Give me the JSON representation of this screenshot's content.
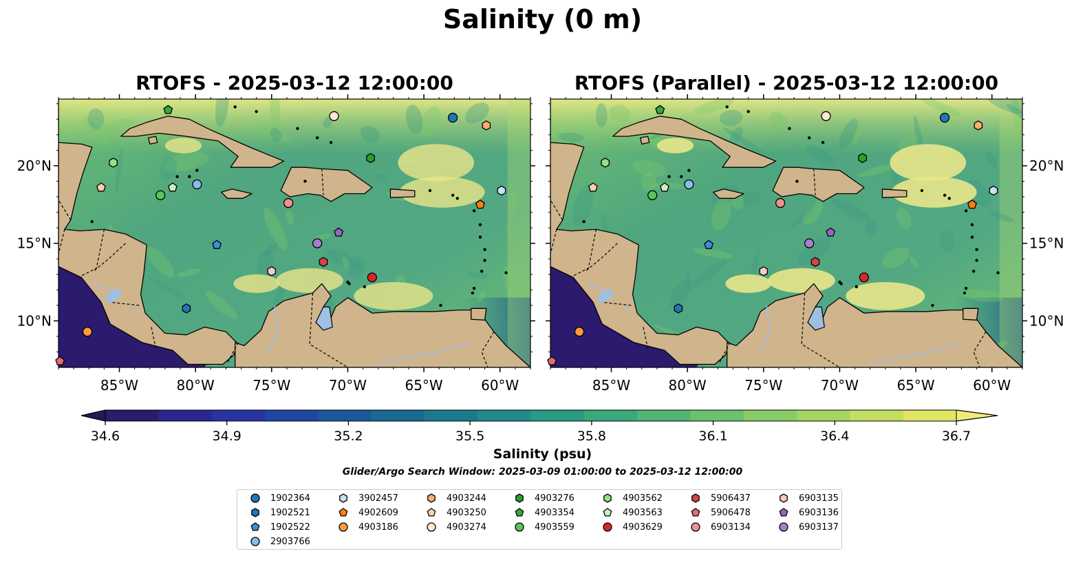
{
  "title": "Salinity (0 m)",
  "panels": [
    {
      "id": "rtofs",
      "title": "RTOFS - 2025-03-12 12:00:00"
    },
    {
      "id": "rtofs-parallel",
      "title": "RTOFS (Parallel) - 2025-03-12 12:00:00"
    }
  ],
  "chart_data": {
    "type": "heatmap",
    "variable": "Salinity",
    "depth_m": 0,
    "x_ticks": [
      "85°W",
      "80°W",
      "75°W",
      "70°W",
      "65°W",
      "60°W"
    ],
    "x_tick_values": [
      -85,
      -80,
      -75,
      -70,
      -65,
      -60
    ],
    "y_ticks": [
      "10°N",
      "15°N",
      "20°N"
    ],
    "y_tick_values": [
      10,
      15,
      20
    ],
    "xlim": [
      -89,
      -58
    ],
    "ylim": [
      7,
      24.3
    ],
    "colorbar": {
      "label": "Salinity (psu)",
      "ticks": [
        "34.6",
        "34.9",
        "35.2",
        "35.5",
        "35.8",
        "36.1",
        "36.4",
        "36.7"
      ],
      "range": [
        34.6,
        36.7
      ],
      "colormap": "haline",
      "extend": "both"
    },
    "search_window": "Glider/Argo Search Window: 2025-03-09 01:00:00 to 2025-03-12 12:00:00",
    "floats": [
      {
        "id": "1902364",
        "marker": "circle",
        "color": "#1f77b4",
        "lon": -63.1,
        "lat": 23.1
      },
      {
        "id": "1902521",
        "marker": "hexagon",
        "color": "#1f77b4",
        "lon": -80.6,
        "lat": 10.8
      },
      {
        "id": "1902522",
        "marker": "pentagon",
        "color": "#3b8fd6",
        "lon": -78.6,
        "lat": 14.9
      },
      {
        "id": "2903766",
        "marker": "circle",
        "color": "#86bdea",
        "lon": -79.9,
        "lat": 18.8
      },
      {
        "id": "3902457",
        "marker": "hexagon",
        "color": "#c5e3f7",
        "lon": -59.9,
        "lat": 18.4
      },
      {
        "id": "4902609",
        "marker": "pentagon",
        "color": "#ff7f0e",
        "lon": -61.3,
        "lat": 17.5
      },
      {
        "id": "4903186",
        "marker": "circle",
        "color": "#ff9a3c",
        "lon": -87.1,
        "lat": 9.3
      },
      {
        "id": "4903244",
        "marker": "hexagon",
        "color": "#ffad6b",
        "lon": -60.9,
        "lat": 22.6
      },
      {
        "id": "4903250",
        "marker": "pentagon",
        "color": "#ffd0a6",
        "lon": -86.2,
        "lat": 18.6
      },
      {
        "id": "4903274",
        "marker": "circle",
        "color": "#ffe9d4",
        "lon": -70.9,
        "lat": 23.2
      },
      {
        "id": "4903276",
        "marker": "hexagon",
        "color": "#2ca02c",
        "lon": -68.5,
        "lat": 20.5
      },
      {
        "id": "4903354",
        "marker": "pentagon",
        "color": "#38a838",
        "lon": -81.8,
        "lat": 23.6
      },
      {
        "id": "4903559",
        "marker": "circle",
        "color": "#5bc35b",
        "lon": -82.3,
        "lat": 18.1
      },
      {
        "id": "4903562",
        "marker": "hexagon",
        "color": "#98df8a",
        "lon": -85.4,
        "lat": 20.2
      },
      {
        "id": "4903563",
        "marker": "pentagon",
        "color": "#c9efc0",
        "lon": -81.5,
        "lat": 18.6
      },
      {
        "id": "4903629",
        "marker": "circle",
        "color": "#d62728",
        "lon": -68.4,
        "lat": 12.8
      },
      {
        "id": "5906437",
        "marker": "hexagon",
        "color": "#d9424a",
        "lon": -71.6,
        "lat": 13.8
      },
      {
        "id": "5906478",
        "marker": "pentagon",
        "color": "#e66a72",
        "lon": -88.9,
        "lat": 7.4
      },
      {
        "id": "6903134",
        "marker": "circle",
        "color": "#f09090",
        "lon": -73.9,
        "lat": 17.6
      },
      {
        "id": "6903135",
        "marker": "hexagon",
        "color": "#f9c9c9",
        "lon": -75.0,
        "lat": 13.2
      },
      {
        "id": "6903136",
        "marker": "pentagon",
        "color": "#9467bd",
        "lon": -70.6,
        "lat": 15.7
      },
      {
        "id": "6903137",
        "marker": "circle",
        "color": "#a57ed0",
        "lon": -72.0,
        "lat": 15.0
      }
    ]
  }
}
